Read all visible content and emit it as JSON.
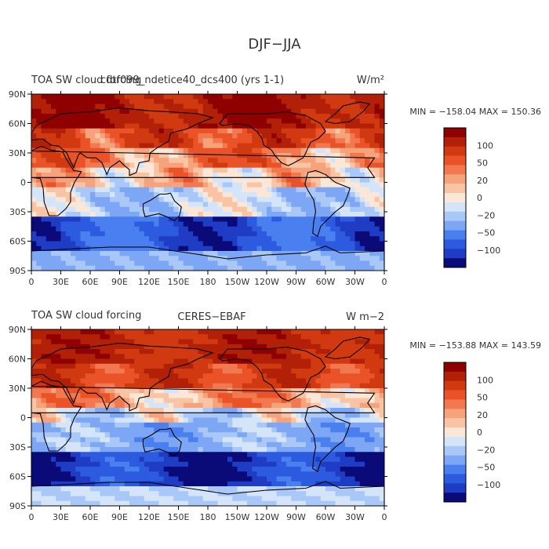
{
  "figure": {
    "title": "DJF−JJA"
  },
  "chart_data": [
    {
      "type": "heatmap",
      "title_left": "TOA SW cloud forcing",
      "title_left_overlap": "cdtf099_ndetice40_dcs400 (yrs 1-1)",
      "title_center": "",
      "units": "W/m²",
      "stats": "MIN = −158.04  MAX = 150.36",
      "min": -158.04,
      "max": 150.36,
      "x_ticks": [
        "0",
        "30E",
        "60E",
        "90E",
        "120E",
        "150E",
        "180",
        "150W",
        "120W",
        "90W",
        "60W",
        "30W",
        "0"
      ],
      "y_ticks": [
        "90N",
        "60N",
        "30N",
        "0",
        "30S",
        "60S",
        "90S"
      ],
      "colorbar_labels": [
        "100",
        "50",
        "20",
        "0",
        "−20",
        "−50",
        "−100"
      ],
      "colorbar_levels": [
        -150,
        -120,
        -100,
        -80,
        -50,
        -30,
        -20,
        -10,
        0,
        10,
        20,
        30,
        50,
        80,
        100,
        120,
        150
      ],
      "colorbar_colors": [
        "#0a0a78",
        "#1f3cc4",
        "#2d5be0",
        "#4a7ff0",
        "#7da7f5",
        "#a9c8f7",
        "#d4e5fa",
        "#fbe7d8",
        "#f9c4a4",
        "#f6a27a",
        "#f2794f",
        "#ea5228",
        "#d13a10",
        "#b32008",
        "#8f0000"
      ]
    },
    {
      "type": "heatmap",
      "title_left": "TOA SW cloud forcing",
      "title_center": "CERES−EBAF",
      "units": "W m−2",
      "stats": "MIN = −153.88  MAX = 143.59",
      "min": -153.88,
      "max": 143.59,
      "x_ticks": [
        "0",
        "30E",
        "60E",
        "90E",
        "120E",
        "150E",
        "180",
        "150W",
        "120W",
        "90W",
        "60W",
        "30W",
        "0"
      ],
      "y_ticks": [
        "90N",
        "60N",
        "30N",
        "0",
        "30S",
        "60S",
        "90S"
      ],
      "colorbar_labels": [
        "100",
        "50",
        "20",
        "0",
        "−20",
        "−50",
        "−100"
      ],
      "colorbar_levels": [
        -150,
        -120,
        -100,
        -80,
        -50,
        -30,
        -20,
        -10,
        0,
        10,
        20,
        30,
        50,
        80,
        100,
        120,
        150
      ],
      "colorbar_colors": [
        "#0a0a78",
        "#1f3cc4",
        "#2d5be0",
        "#4a7ff0",
        "#7da7f5",
        "#a9c8f7",
        "#d4e5fa",
        "#fbe7d8",
        "#f9c4a4",
        "#f6a27a",
        "#f2794f",
        "#ea5228",
        "#d13a10",
        "#b32008",
        "#8f0000"
      ]
    }
  ]
}
